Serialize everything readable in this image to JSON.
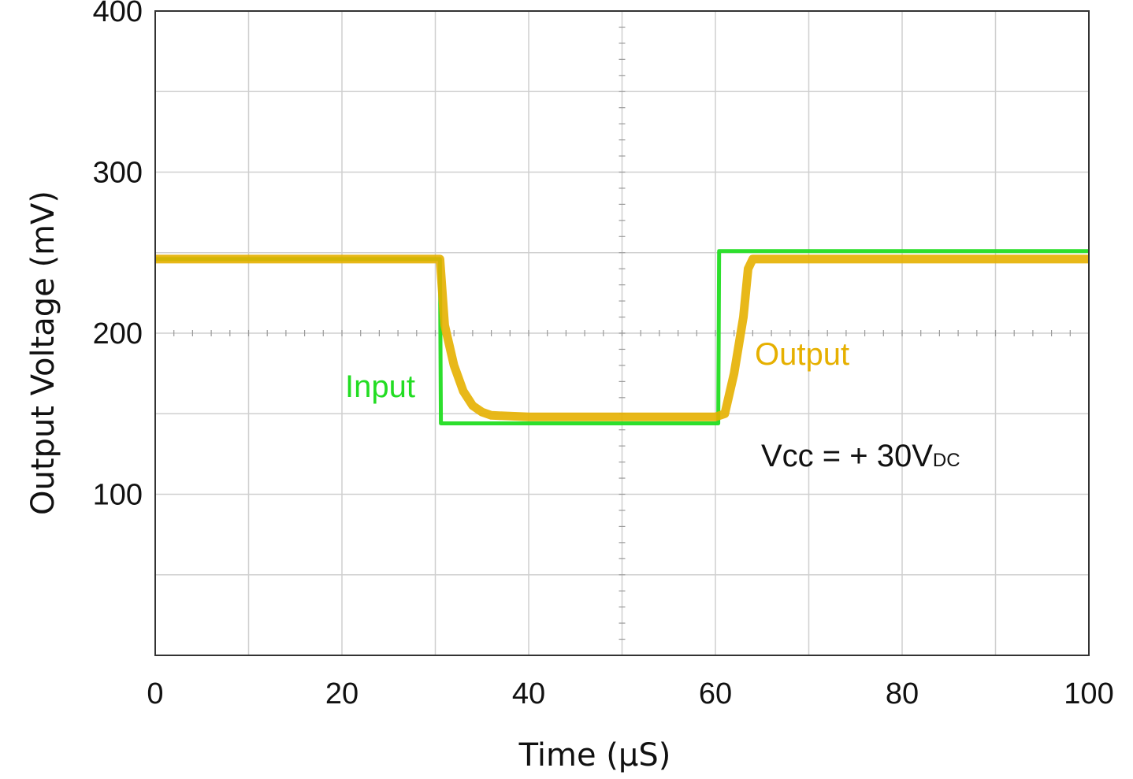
{
  "chart_data": {
    "type": "line",
    "xlabel": "Time (µS)",
    "ylabel": "Output Voltage (mV)",
    "xlim": [
      0,
      100
    ],
    "ylim": [
      0,
      400
    ],
    "x_ticks": [
      0,
      20,
      40,
      60,
      80,
      100
    ],
    "y_ticks": [
      100,
      200,
      300,
      400
    ],
    "grid": true,
    "series": [
      {
        "name": "Input",
        "color": "#22dd22",
        "points": [
          [
            0,
            246
          ],
          [
            30.5,
            246
          ],
          [
            30.6,
            144
          ],
          [
            60.3,
            144
          ],
          [
            60.4,
            251
          ],
          [
            100,
            251
          ]
        ]
      },
      {
        "name": "Output",
        "color": "#e6b000",
        "points": [
          [
            0,
            246
          ],
          [
            30.5,
            246
          ],
          [
            31,
            205
          ],
          [
            32,
            180
          ],
          [
            33,
            164
          ],
          [
            34,
            155
          ],
          [
            35,
            151
          ],
          [
            36,
            149
          ],
          [
            40,
            148
          ],
          [
            60,
            148
          ],
          [
            61,
            150
          ],
          [
            62,
            175
          ],
          [
            63,
            210
          ],
          [
            63.5,
            240
          ],
          [
            64,
            246
          ],
          [
            100,
            246
          ]
        ]
      }
    ],
    "annotation": {
      "main": "Vcc = + 30V",
      "subscript": "DC"
    }
  }
}
